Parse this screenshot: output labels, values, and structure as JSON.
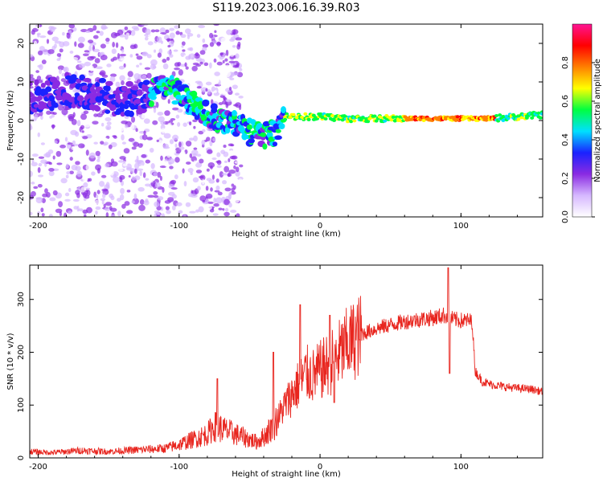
{
  "figure": {
    "title": "S119.2023.006.16.39.R03"
  },
  "chart_data": [
    {
      "type": "heatmap",
      "xlabel": "Height of straight line (km)",
      "ylabel": "Frequency (Hz)",
      "xlim": [
        -206,
        158
      ],
      "ylim": [
        -25,
        25
      ],
      "xticks": [
        -200,
        -100,
        0,
        100
      ],
      "yticks": [
        -20,
        -10,
        0,
        10,
        20
      ],
      "colorbar": {
        "label": "Normalized spectral amplitude",
        "ticks": [
          0.0,
          0.2,
          0.4,
          0.6,
          0.8
        ],
        "range": [
          0,
          1
        ],
        "colors": [
          "#ffffff",
          "#d6b8ff",
          "#8a2be2",
          "#1a22ff",
          "#00e0ff",
          "#00ff40",
          "#ffff00",
          "#ff7f00",
          "#ff0000",
          "#ff1493"
        ]
      },
      "ridge": {
        "x": [
          -200,
          -180,
          -160,
          -140,
          -120,
          -110,
          -100,
          -90,
          -80,
          -70,
          -60,
          -50,
          -40,
          -30,
          -25,
          -20,
          0,
          20,
          50,
          80,
          100,
          120,
          140,
          158
        ],
        "y": [
          6,
          8,
          7,
          5,
          7,
          9,
          7,
          4,
          2,
          0,
          -1,
          -3,
          -4,
          -3,
          1,
          1,
          1,
          0.5,
          0.5,
          0.5,
          0.5,
          0.5,
          1,
          1.5
        ]
      },
      "grid": false
    },
    {
      "type": "line",
      "xlabel": "Height of straight line (km)",
      "ylabel": "SNR (10 * v/v)",
      "xlim": [
        -206,
        158
      ],
      "ylim": [
        0,
        365
      ],
      "xticks": [
        -200,
        -100,
        0,
        100
      ],
      "yticks": [
        0,
        100,
        200,
        300
      ],
      "series": [
        {
          "color": "#e8251e",
          "x": [
            -206,
            -190,
            -170,
            -150,
            -130,
            -110,
            -100,
            -90,
            -80,
            -75,
            -70,
            -60,
            -50,
            -45,
            -40,
            -35,
            -30,
            -25,
            -20,
            -15,
            -12,
            -10,
            -5,
            0,
            5,
            10,
            15,
            20,
            25,
            30,
            40,
            50,
            60,
            70,
            80,
            88,
            91,
            92,
            95,
            100,
            105,
            108,
            110,
            115,
            120,
            130,
            140,
            150,
            158
          ],
          "y": [
            12,
            10,
            14,
            12,
            15,
            18,
            25,
            35,
            45,
            60,
            55,
            45,
            35,
            30,
            40,
            55,
            75,
            100,
            120,
            140,
            150,
            160,
            155,
            165,
            175,
            185,
            200,
            215,
            225,
            235,
            245,
            252,
            258,
            262,
            265,
            270,
            268,
            265,
            262,
            260,
            260,
            258,
            165,
            145,
            140,
            135,
            132,
            130,
            125
          ]
        }
      ],
      "spikes": [
        {
          "x": -73,
          "y": 150
        },
        {
          "x": -33,
          "y": 200
        },
        {
          "x": -14,
          "y": 290
        },
        {
          "x": 7,
          "y": 270
        },
        {
          "x": 10,
          "y": 105
        },
        {
          "x": 91,
          "y": 360
        },
        {
          "x": 92,
          "y": 160
        }
      ],
      "grid": false
    }
  ]
}
